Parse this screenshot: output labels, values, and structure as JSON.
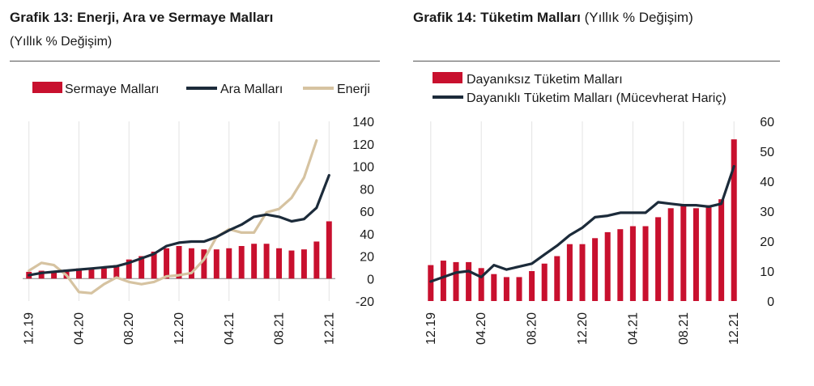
{
  "chart13": {
    "title_bold": "Grafik 13: Enerji, Ara ve Sermaye Malları",
    "subtitle": "(Yıllık % Değişim)"
  },
  "chart14": {
    "title_bold": "Grafik 14: Tüketim Malları",
    "title_rest": " (Yıllık % Değişim)"
  },
  "colors": {
    "red": "#C8102E",
    "navy": "#1C2B3A",
    "beige": "#D6C3A1",
    "grid": "#e3e3e3"
  },
  "chart_data": [
    {
      "type": "bar+line",
      "title": "Grafik 13: Enerji, Ara ve Sermaye Malları",
      "subtitle": "(Yıllık % Değişim)",
      "categories": [
        "12.19",
        "01.20",
        "02.20",
        "03.20",
        "04.20",
        "05.20",
        "06.20",
        "07.20",
        "08.20",
        "09.20",
        "10.20",
        "11.20",
        "12.20",
        "01.21",
        "02.21",
        "03.21",
        "04.21",
        "05.21",
        "06.21",
        "07.21",
        "08.21",
        "09.21",
        "10.21",
        "11.21",
        "12.21"
      ],
      "x_tick_labels": [
        "12.19",
        "04.20",
        "08.20",
        "12.20",
        "04.21",
        "08.21",
        "12.21"
      ],
      "ylim": [
        -20,
        140
      ],
      "y_ticks": [
        -20,
        0,
        20,
        40,
        60,
        80,
        100,
        120,
        140
      ],
      "y_axis_side": "right",
      "legend_position": "top",
      "series": [
        {
          "name": "Sermaye Malları",
          "kind": "bar",
          "values": [
            6,
            7,
            7,
            8,
            9,
            9,
            10,
            12,
            17,
            20,
            24,
            27,
            29,
            27,
            26,
            26,
            27,
            29,
            31,
            31,
            27,
            25,
            26,
            33,
            51
          ]
        },
        {
          "name": "Ara Malları",
          "kind": "line",
          "values": [
            3,
            5,
            6,
            7,
            8,
            9,
            10,
            11,
            14,
            18,
            22,
            29,
            32,
            33,
            33,
            37,
            43,
            48,
            55,
            57,
            55,
            51,
            53,
            63,
            92
          ]
        },
        {
          "name": "Enerji",
          "kind": "line",
          "values": [
            7,
            14,
            12,
            3,
            -12,
            -13,
            -5,
            1,
            -3,
            -5,
            -3,
            2,
            3,
            5,
            17,
            37,
            44,
            41,
            41,
            59,
            62,
            72,
            90,
            123,
            null
          ]
        }
      ]
    },
    {
      "type": "bar+line",
      "title": "Grafik 14: Tüketim Malları",
      "subtitle": "(Yıllık % Değişim)",
      "categories": [
        "12.19",
        "01.20",
        "02.20",
        "03.20",
        "04.20",
        "05.20",
        "06.20",
        "07.20",
        "08.20",
        "09.20",
        "10.20",
        "11.20",
        "12.20",
        "01.21",
        "02.21",
        "03.21",
        "04.21",
        "05.21",
        "06.21",
        "07.21",
        "08.21",
        "09.21",
        "10.21",
        "11.21",
        "12.21"
      ],
      "x_tick_labels": [
        "12.19",
        "04.20",
        "08.20",
        "12.20",
        "04.21",
        "08.21",
        "12.21"
      ],
      "ylim": [
        0,
        60
      ],
      "y_ticks": [
        0,
        10,
        20,
        30,
        40,
        50,
        60
      ],
      "y_axis_side": "right",
      "legend_position": "top",
      "series": [
        {
          "name": "Dayanıksız Tüketim Malları",
          "kind": "bar",
          "values": [
            12,
            13.5,
            13,
            13,
            11,
            9,
            8,
            8,
            10,
            12.5,
            15,
            19,
            19,
            21,
            23,
            24,
            25,
            25,
            28,
            31,
            32,
            31,
            32,
            34,
            54
          ]
        },
        {
          "name": "Dayanıklı Tüketim Malları (Mücevherat Hariç)",
          "kind": "line",
          "values": [
            6.5,
            8,
            9.5,
            10,
            8,
            12,
            10.5,
            11.5,
            12.5,
            15.5,
            18.5,
            22,
            24.5,
            28,
            28.5,
            29.5,
            29.5,
            29.5,
            33,
            32.5,
            32,
            32,
            31.5,
            32.5,
            45
          ]
        }
      ]
    }
  ]
}
